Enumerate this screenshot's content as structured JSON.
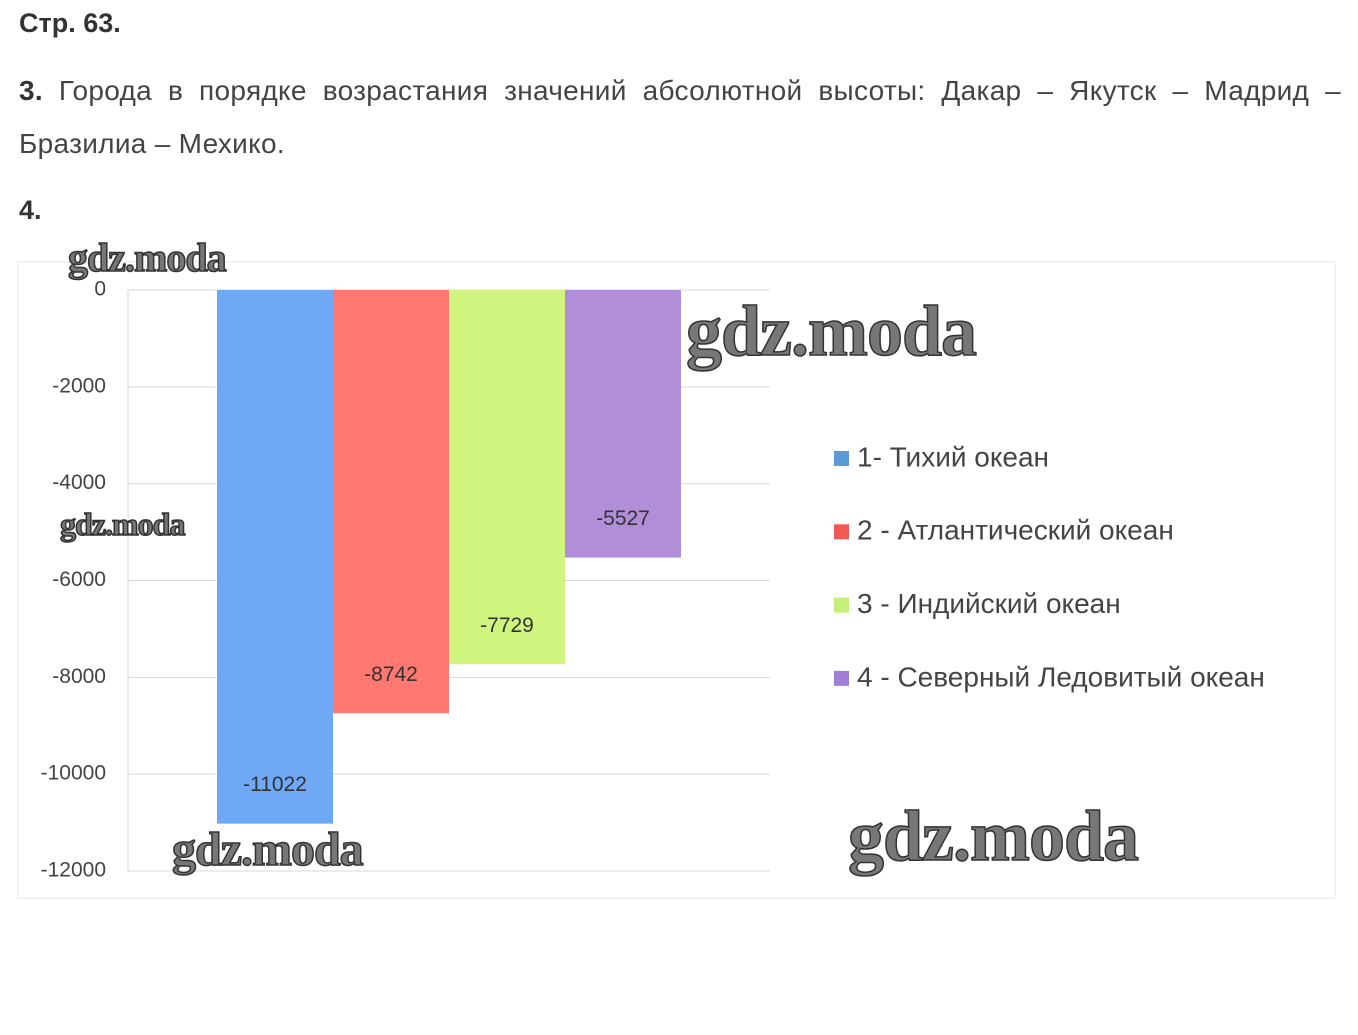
{
  "page_label": "Стр. 63.",
  "items": [
    {
      "number": "3.",
      "text": "Города в порядке возрастания значений абсолютной высоты: Дакар – Якутск – Мадрид – Бразилиа – Мехико."
    },
    {
      "number": "4."
    }
  ],
  "watermark": "gdz.moda",
  "chart_data": {
    "type": "bar",
    "categories": [
      "1- Тихий океан",
      "2 - Атлантический океан",
      "3 - Индийский океан",
      "4 - Северный Ледовитый океан"
    ],
    "values": [
      -11022,
      -8742,
      -7729,
      -5527
    ],
    "colors": [
      "#6fa8f5",
      "#ff7872",
      "#d0f57f",
      "#b08ed8"
    ],
    "legend_colors": [
      "#5b9bd5",
      "#f15a54",
      "#c3ef7a",
      "#a27fd6"
    ],
    "ylim": [
      -12000,
      0
    ],
    "yticks": [
      0,
      -2000,
      -4000,
      -6000,
      -8000,
      -10000,
      -12000
    ],
    "grid": true,
    "legend": "right"
  }
}
